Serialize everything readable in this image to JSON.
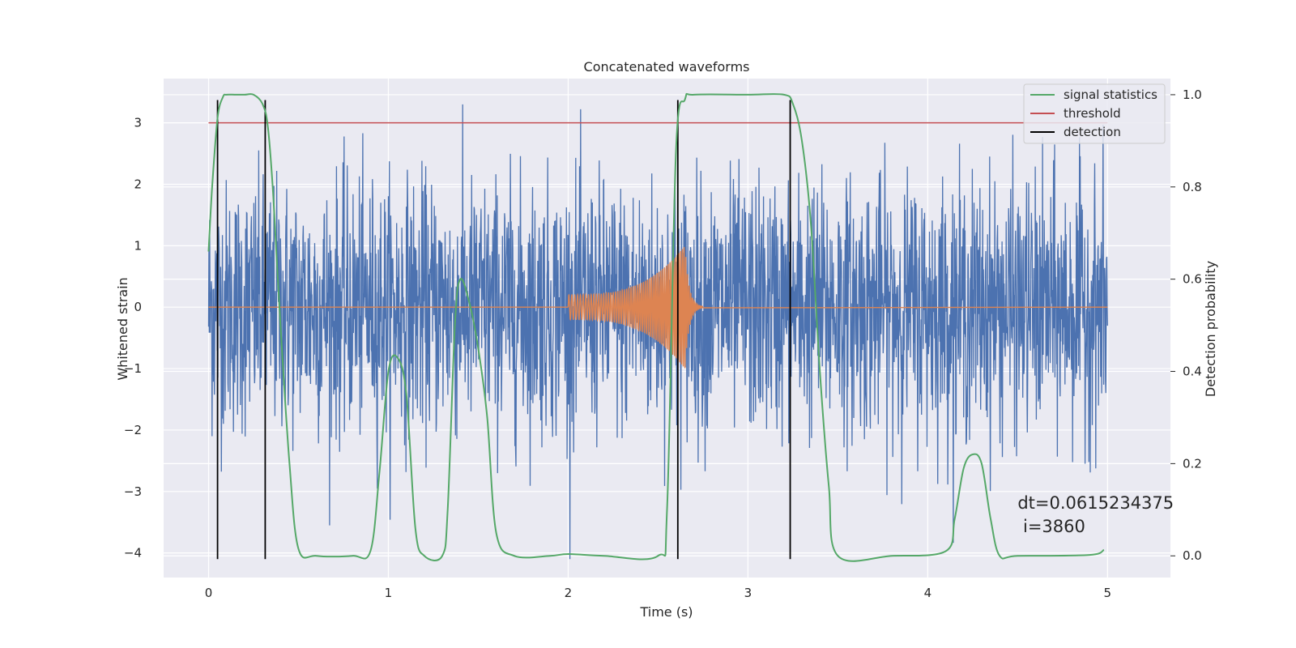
{
  "chart_data": {
    "type": "line",
    "title": "Concatenated waveforms",
    "xlabel": "Time (s)",
    "ylabel": "Whitened strain",
    "y2label": "Detection probability",
    "xlim": [
      -0.25,
      5.35
    ],
    "ylim": [
      -4.4,
      3.72
    ],
    "y2lim": [
      -0.047,
      1.035
    ],
    "grid": true,
    "legend_position": "top-right",
    "x_ticks": [
      0,
      1,
      2,
      3,
      4,
      5
    ],
    "x_tick_labels": [
      "0",
      "1",
      "2",
      "3",
      "4",
      "5"
    ],
    "y_ticks": [
      -4,
      -3,
      -2,
      -1,
      0,
      1,
      2,
      3
    ],
    "y_tick_labels": [
      "−4",
      "−3",
      "−2",
      "−1",
      "0",
      "1",
      "2",
      "3"
    ],
    "y2_ticks": [
      0.0,
      0.2,
      0.4,
      0.6,
      0.8,
      1.0
    ],
    "y2_tick_labels": [
      "0.0",
      "0.2",
      "0.4",
      "0.6",
      "0.8",
      "1.0"
    ],
    "series": [
      {
        "kind": "noise",
        "axis": "left",
        "color": "#4c72b0",
        "x_range": [
          0,
          5
        ],
        "typical_amplitude": 1.2,
        "min": -4.1,
        "max": 3.3
      },
      {
        "kind": "chirp",
        "axis": "left",
        "color": "#dd8452",
        "x_range": [
          0,
          5
        ],
        "chirp_start": 2.0,
        "chirp_peak": 2.65,
        "start_amplitude": 0.2,
        "peak_amplitude": 1.0
      },
      {
        "name": "signal statistics",
        "axis": "right",
        "color": "#55a868",
        "x": [
          0.0,
          0.02,
          0.05,
          0.08,
          0.1,
          0.15,
          0.2,
          0.25,
          0.3,
          0.33,
          0.36,
          0.4,
          0.45,
          0.5,
          0.6,
          0.8,
          0.9,
          0.95,
          1.0,
          1.05,
          1.1,
          1.15,
          1.2,
          1.3,
          1.33,
          1.37,
          1.4,
          1.45,
          1.5,
          1.55,
          1.6,
          1.7,
          1.9,
          2.0,
          2.2,
          2.5,
          2.55,
          2.6,
          2.65,
          2.7,
          3.0,
          3.2,
          3.25,
          3.3,
          3.35,
          3.4,
          3.45,
          3.5,
          3.8,
          4.1,
          4.15,
          4.2,
          4.25,
          4.3,
          4.35,
          4.4,
          4.5,
          4.9,
          4.98
        ],
        "values": [
          0.66,
          0.8,
          0.95,
          0.995,
          1.0,
          1.0,
          1.0,
          1.0,
          0.98,
          0.93,
          0.78,
          0.5,
          0.2,
          0.015,
          0.0,
          0.0,
          0.01,
          0.18,
          0.4,
          0.43,
          0.35,
          0.06,
          0.0,
          0.0,
          0.1,
          0.5,
          0.6,
          0.55,
          0.45,
          0.3,
          0.05,
          0.0,
          0.0,
          0.004,
          0.0,
          0.0,
          0.1,
          0.88,
          0.99,
          1.0,
          1.0,
          1.0,
          0.98,
          0.9,
          0.72,
          0.4,
          0.15,
          0.0,
          0.0,
          0.01,
          0.08,
          0.19,
          0.22,
          0.2,
          0.08,
          0.0,
          0.0,
          0.002,
          0.013
        ]
      },
      {
        "name": "threshold",
        "axis": "left",
        "color": "#c44e52",
        "x": [
          0,
          5
        ],
        "values": [
          3.0,
          3.0
        ]
      },
      {
        "name": "detection",
        "axis": "left",
        "color": "#000000",
        "x": [
          0.05,
          0.315,
          2.61,
          3.235
        ],
        "y_range": [
          -4.1,
          3.37
        ]
      }
    ],
    "annotations": [
      {
        "text": "dt=0.0615234375",
        "x": 4.5,
        "y": -3.28
      },
      {
        "text": "i=3860",
        "x": 4.53,
        "y": -3.66
      }
    ]
  }
}
